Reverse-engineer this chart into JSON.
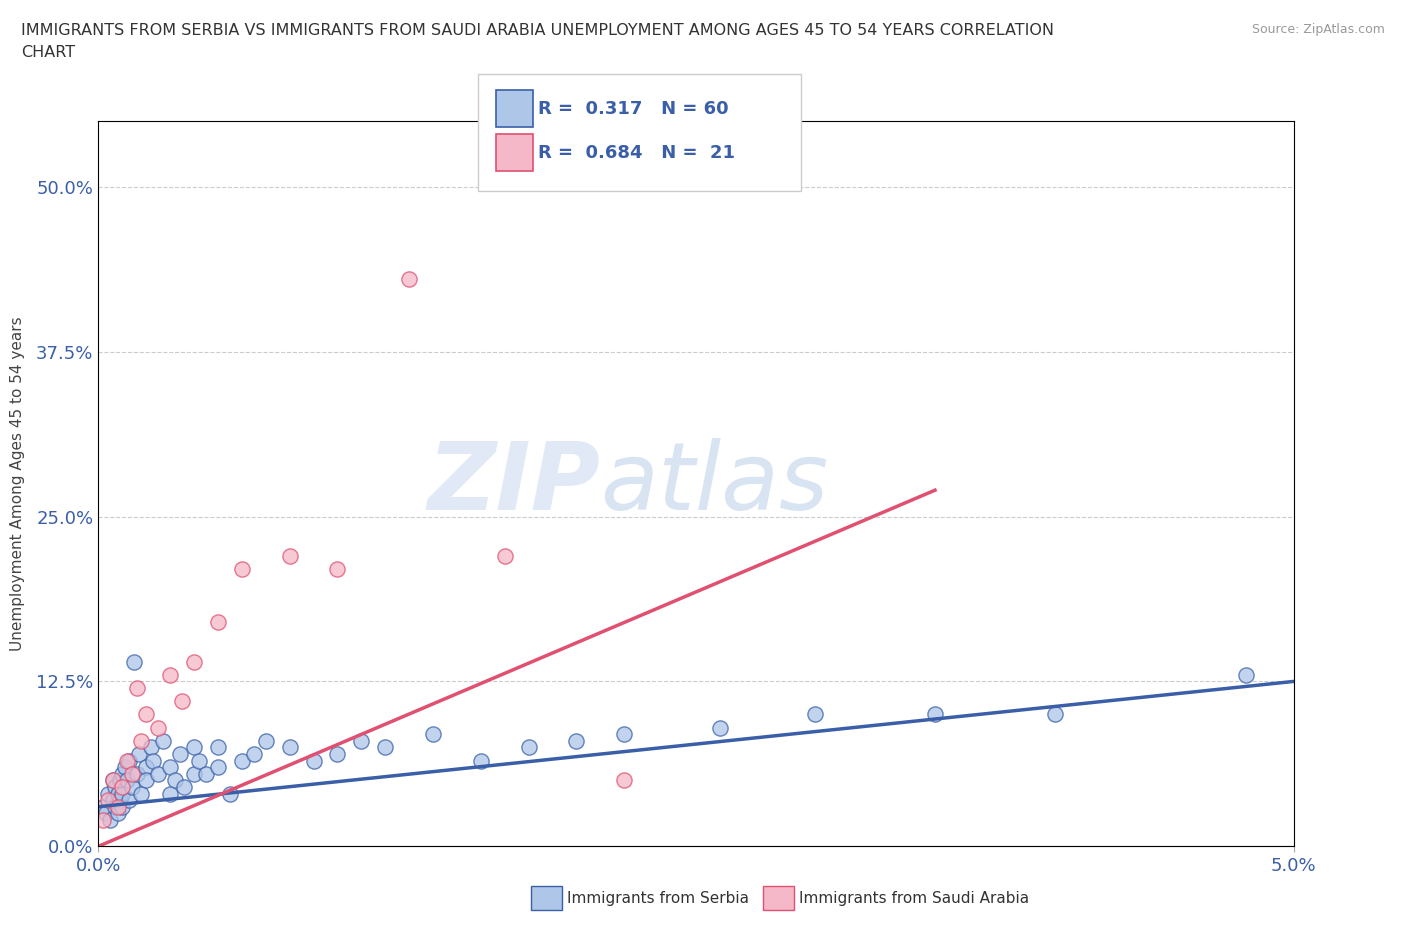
{
  "title_line1": "IMMIGRANTS FROM SERBIA VS IMMIGRANTS FROM SAUDI ARABIA UNEMPLOYMENT AMONG AGES 45 TO 54 YEARS CORRELATION",
  "title_line2": "CHART",
  "source": "Source: ZipAtlas.com",
  "ylabel": "Unemployment Among Ages 45 to 54 years",
  "xlabel_label_serbia": "Immigrants from Serbia",
  "xlabel_label_saudi": "Immigrants from Saudi Arabia",
  "x_min": 0.0,
  "x_max": 0.05,
  "y_min": 0.0,
  "y_max": 0.55,
  "y_ticks": [
    0.0,
    0.125,
    0.25,
    0.375,
    0.5
  ],
  "y_tick_labels": [
    "0.0%",
    "12.5%",
    "25.0%",
    "37.5%",
    "50.0%"
  ],
  "x_tick_labels": [
    "0.0%",
    "5.0%"
  ],
  "x_ticks": [
    0.0,
    0.05
  ],
  "serbia_color": "#aec6e8",
  "saudi_color": "#f4b8c8",
  "serbia_line_color": "#3a5fa8",
  "saudi_line_color": "#e05070",
  "serbia_R": 0.317,
  "serbia_N": 60,
  "saudi_R": 0.684,
  "saudi_N": 21,
  "watermark_zip": "ZIP",
  "watermark_atlas": "atlas",
  "serbia_x": [
    0.0002,
    0.0003,
    0.0004,
    0.0005,
    0.0006,
    0.0006,
    0.0007,
    0.0007,
    0.0008,
    0.0008,
    0.0009,
    0.0009,
    0.001,
    0.001,
    0.001,
    0.0011,
    0.0012,
    0.0013,
    0.0013,
    0.0014,
    0.0015,
    0.0016,
    0.0017,
    0.0018,
    0.002,
    0.002,
    0.0022,
    0.0023,
    0.0025,
    0.0027,
    0.003,
    0.003,
    0.0032,
    0.0034,
    0.0036,
    0.004,
    0.004,
    0.0042,
    0.0045,
    0.005,
    0.005,
    0.0055,
    0.006,
    0.0065,
    0.007,
    0.008,
    0.009,
    0.01,
    0.011,
    0.012,
    0.014,
    0.016,
    0.018,
    0.02,
    0.022,
    0.026,
    0.03,
    0.035,
    0.04,
    0.048
  ],
  "serbia_y": [
    0.03,
    0.025,
    0.04,
    0.02,
    0.035,
    0.05,
    0.03,
    0.045,
    0.025,
    0.04,
    0.05,
    0.035,
    0.03,
    0.055,
    0.04,
    0.06,
    0.05,
    0.035,
    0.065,
    0.045,
    0.14,
    0.055,
    0.07,
    0.04,
    0.06,
    0.05,
    0.075,
    0.065,
    0.055,
    0.08,
    0.04,
    0.06,
    0.05,
    0.07,
    0.045,
    0.055,
    0.075,
    0.065,
    0.055,
    0.06,
    0.075,
    0.04,
    0.065,
    0.07,
    0.08,
    0.075,
    0.065,
    0.07,
    0.08,
    0.075,
    0.085,
    0.065,
    0.075,
    0.08,
    0.085,
    0.09,
    0.1,
    0.1,
    0.1,
    0.13
  ],
  "saudi_x": [
    0.0002,
    0.0004,
    0.0006,
    0.0008,
    0.001,
    0.0012,
    0.0014,
    0.0016,
    0.0018,
    0.002,
    0.0025,
    0.003,
    0.0035,
    0.004,
    0.005,
    0.006,
    0.008,
    0.01,
    0.013,
    0.017,
    0.022
  ],
  "saudi_y": [
    0.02,
    0.035,
    0.05,
    0.03,
    0.045,
    0.065,
    0.055,
    0.12,
    0.08,
    0.1,
    0.09,
    0.13,
    0.11,
    0.14,
    0.17,
    0.21,
    0.22,
    0.21,
    0.43,
    0.22,
    0.05
  ],
  "serbia_trend_x": [
    0.0,
    0.05
  ],
  "serbia_trend_y": [
    0.03,
    0.125
  ],
  "saudi_trend_x": [
    0.0,
    0.035
  ],
  "saudi_trend_y": [
    0.0,
    0.27
  ],
  "grid_color": "#cccccc",
  "background_color": "#ffffff"
}
